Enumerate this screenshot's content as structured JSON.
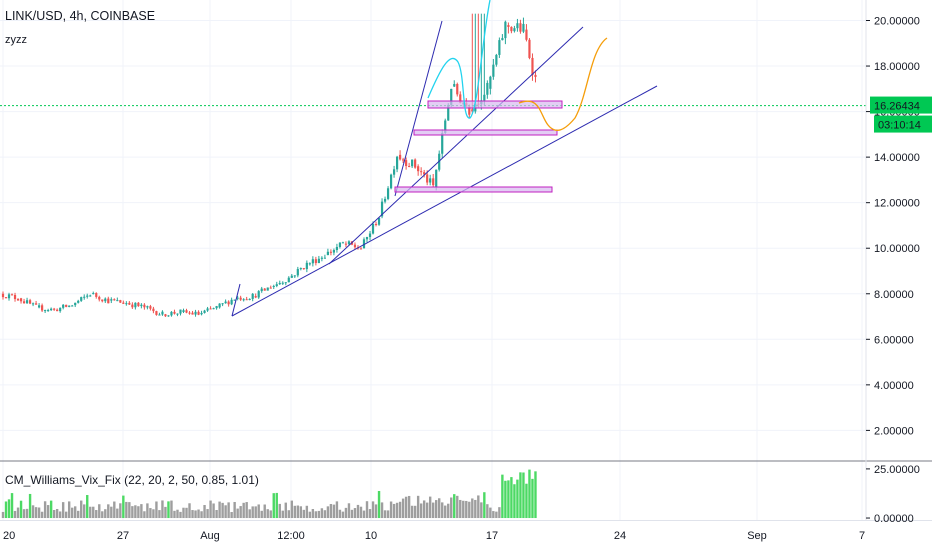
{
  "header": {
    "symbol": "LINK/USD, 4h, COINBASE",
    "author": "zyzz"
  },
  "price_badge": {
    "value": "16.26434",
    "countdown": "03:10:14",
    "color": "#00c853"
  },
  "colors": {
    "up": "#26a69a",
    "down": "#ef5350",
    "trendline": "#2d2bb0",
    "zone_stroke": "#c020c0",
    "zone_fill": "#d7b8f0",
    "projection_orange": "#f59e0b",
    "projection_cyan": "#22d3ee",
    "hist_gray": "#9e9e9e",
    "hist_green": "#4cd964",
    "price_line": "#00c853"
  },
  "chart_data": [
    {
      "type": "candlestick",
      "title": "LINK/USD, 4h, COINBASE",
      "y_tick_labels": [
        "2.00000",
        "4.00000",
        "6.00000",
        "8.00000",
        "10.00000",
        "12.00000",
        "14.00000",
        "16.00000",
        "18.00000",
        "20.00000"
      ],
      "x_tick_labels": [
        "20",
        "27",
        "Aug",
        "12:00",
        "10",
        "17",
        "24",
        "Sep",
        "7"
      ],
      "ylim": [
        0.7,
        20.9
      ],
      "grid": true,
      "last_price": 16.26434,
      "series_daily_approx": [
        {
          "x": "Jul 20",
          "o": 8.0,
          "c": 7.8
        },
        {
          "x": "Jul 21",
          "o": 7.8,
          "c": 7.4
        },
        {
          "x": "Jul 22",
          "o": 7.4,
          "c": 7.3
        },
        {
          "x": "Jul 23",
          "o": 7.3,
          "c": 7.5
        },
        {
          "x": "Jul 24",
          "o": 7.5,
          "c": 8.0
        },
        {
          "x": "Jul 25",
          "o": 8.0,
          "c": 7.7
        },
        {
          "x": "Jul 26",
          "o": 7.7,
          "c": 7.6
        },
        {
          "x": "Jul 27",
          "o": 7.6,
          "c": 7.4
        },
        {
          "x": "Jul 28",
          "o": 7.4,
          "c": 7.1
        },
        {
          "x": "Jul 29",
          "o": 7.1,
          "c": 7.2
        },
        {
          "x": "Jul 30",
          "o": 7.2,
          "c": 7.1
        },
        {
          "x": "Jul 31",
          "o": 7.1,
          "c": 7.4
        },
        {
          "x": "Aug 1",
          "o": 7.4,
          "c": 7.8
        },
        {
          "x": "Aug 2",
          "o": 7.8,
          "c": 7.9
        },
        {
          "x": "Aug 3",
          "o": 7.9,
          "c": 8.3
        },
        {
          "x": "Aug 4",
          "o": 8.3,
          "c": 8.7
        },
        {
          "x": "Aug 5",
          "o": 8.7,
          "c": 9.3
        },
        {
          "x": "Aug 6",
          "o": 9.3,
          "c": 9.7
        },
        {
          "x": "Aug 7",
          "o": 9.7,
          "c": 10.2
        },
        {
          "x": "Aug 8",
          "o": 10.2,
          "c": 10.0
        },
        {
          "x": "Aug 9",
          "o": 10.0,
          "c": 11.4
        },
        {
          "x": "Aug 10",
          "o": 11.4,
          "c": 14.1
        },
        {
          "x": "Aug 11",
          "o": 14.1,
          "c": 13.6
        },
        {
          "x": "Aug 12",
          "o": 13.6,
          "c": 12.7
        },
        {
          "x": "Aug 13",
          "o": 12.7,
          "c": 17.1
        },
        {
          "x": "Aug 14",
          "o": 17.1,
          "c": 16.1
        },
        {
          "x": "Aug 15",
          "o": 16.1,
          "c": 17.0
        },
        {
          "x": "Aug 16",
          "o": 17.0,
          "c": 19.8
        },
        {
          "x": "Aug 17",
          "o": 19.8,
          "c": 19.6
        },
        {
          "x": "Aug 18",
          "o": 19.6,
          "c": 16.3
        }
      ],
      "indicator": {
        "name": "CM_Williams_Vix_Fix (22, 20, 2, 50, 0.85, 1.01)",
        "y_tick_labels": [
          "25.00000",
          "0.00000"
        ],
        "ylim": [
          -1,
          28
        ]
      }
    }
  ]
}
